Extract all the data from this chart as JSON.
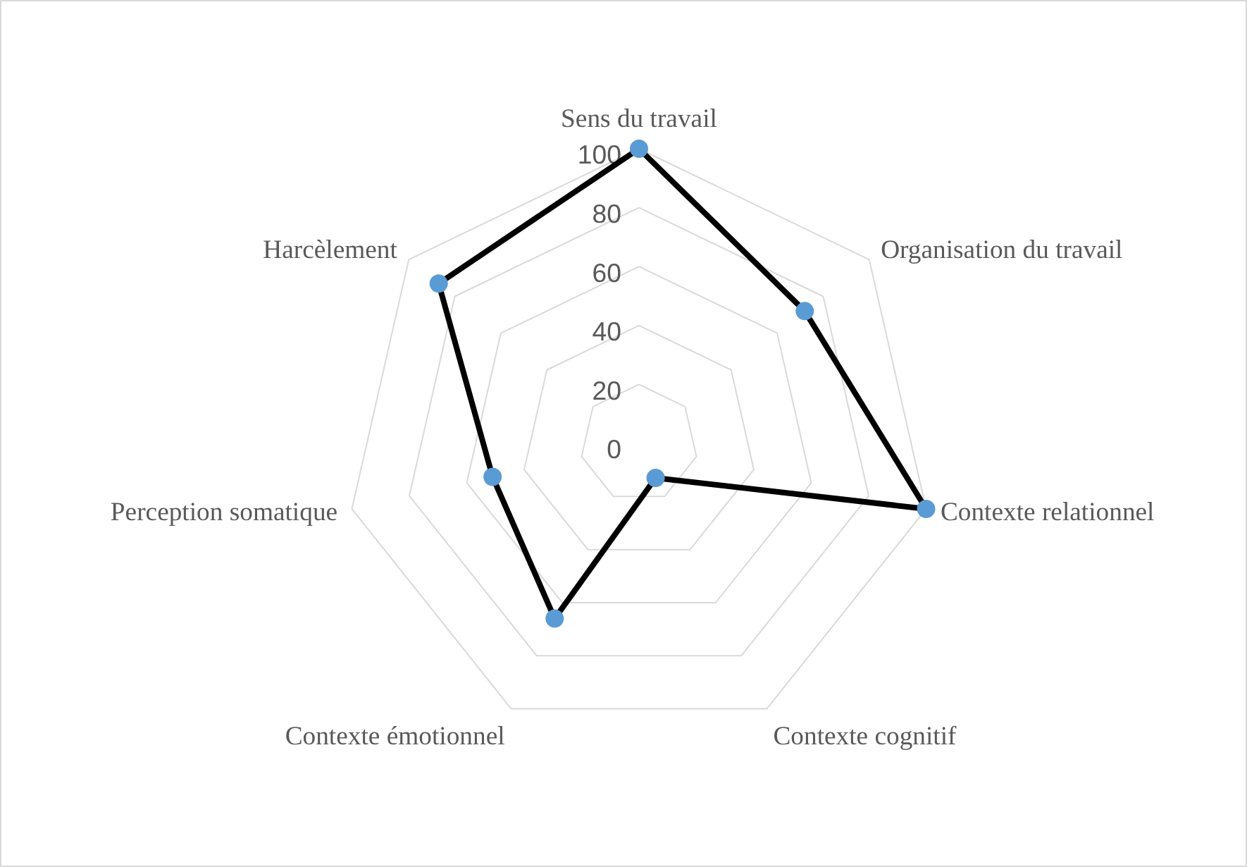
{
  "chart_data": {
    "type": "radar",
    "categories": [
      "Sens du travail",
      "Organisation du travail",
      "Contexte relationnel",
      "Contexte cognitif",
      "Contexte émotionnel",
      "Perception somatique",
      "Harcèlement"
    ],
    "series": [
      {
        "color": "#000000",
        "colors": [
          "#5b9bd5",
          "#5b9bd5",
          "#5b9bd5",
          "#5b9bd5",
          "#5b9bd5",
          "#5b9bd5",
          "#5b9bd5"
        ],
        "values": [
          100,
          72,
          100,
          13,
          66,
          51,
          87
        ]
      }
    ],
    "ylim": [
      0,
      100
    ],
    "yticks": [
      0,
      20,
      40,
      60,
      80,
      100
    ],
    "grid": true,
    "marker": "circle",
    "line_style": "solid"
  }
}
